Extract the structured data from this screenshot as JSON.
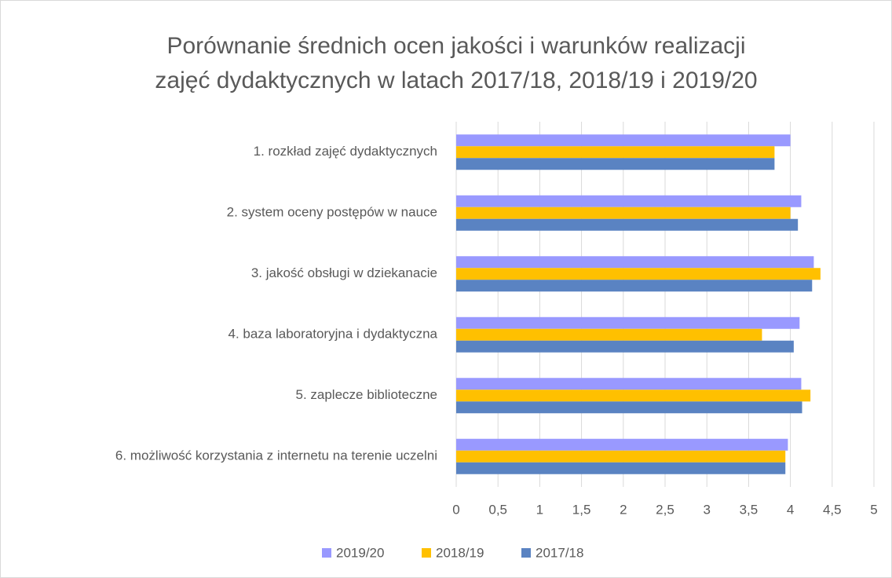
{
  "chart_data": {
    "type": "hbar",
    "title": [
      "Porównanie średnich ocen jakości i warunków realizacji",
      "zajęć dydaktycznych w latach 2017/18, 2018/19 i 2019/20"
    ],
    "categories": [
      "1. rozkład zajęć dydaktycznych",
      "2. system oceny postępów w nauce",
      "3. jakość obsługi w dziekanacie",
      "4. baza laboratoryjna i dydaktyczna",
      "5. zaplecze biblioteczne",
      "6. możliwość korzystania z internetu na terenie uczelni"
    ],
    "series": [
      {
        "name": "2019/20",
        "color": "#9999ff",
        "values": [
          4.0,
          4.13,
          4.28,
          4.11,
          4.13,
          3.97
        ]
      },
      {
        "name": "2018/19",
        "color": "#ffc000",
        "values": [
          3.81,
          4.0,
          4.36,
          3.66,
          4.24,
          3.94
        ]
      },
      {
        "name": "2017/18",
        "color": "#5a83c2",
        "values": [
          3.81,
          4.09,
          4.26,
          4.04,
          4.14,
          3.94
        ]
      }
    ],
    "xlim": [
      0,
      5
    ],
    "xticks": [
      0,
      {
        "value": 0.5,
        "label": "0,5"
      },
      1,
      {
        "value": 1.5,
        "label": "1,5"
      },
      2,
      {
        "value": 2.5,
        "label": "2,5"
      },
      3,
      {
        "value": 3.5,
        "label": "3,5"
      },
      4,
      {
        "value": 4.5,
        "label": "4,5"
      },
      5
    ],
    "grid": true,
    "legend": "bottom"
  }
}
